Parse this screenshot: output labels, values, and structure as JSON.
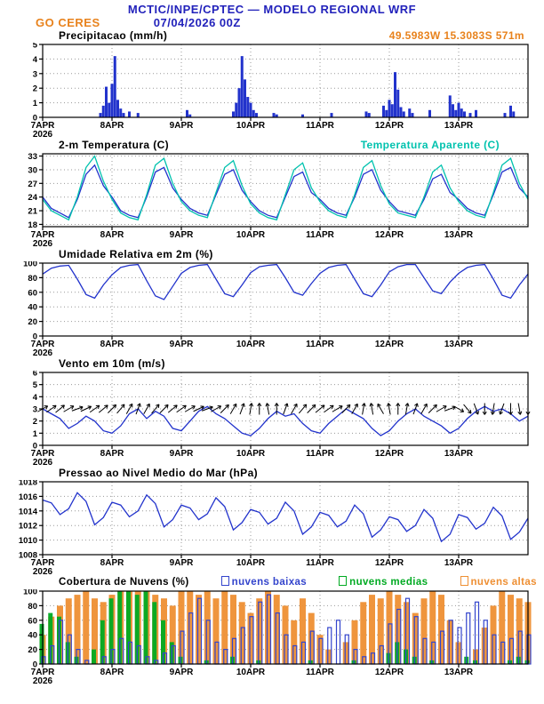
{
  "header": {
    "line1": "MCTIC/INPE/CPTEC — MODELO REGIONAL WRF",
    "station": "GO CERES",
    "datetime": "07/04/2026 00Z",
    "location": "49.5983W 15.3083S 571m"
  },
  "colors": {
    "header_blue": "#2222bb",
    "orange": "#e8821c",
    "line_blue": "#2233cc",
    "aqua": "#00c2ae",
    "grid_gray": "#999999",
    "black": "#000000"
  },
  "x_axis": {
    "hours_total": 168,
    "tick_hours": [
      0,
      24,
      48,
      72,
      96,
      120,
      144
    ],
    "tick_labels": [
      "7APR",
      "8APR",
      "9APR",
      "10APR",
      "11APR",
      "12APR",
      "13APR"
    ],
    "year_label": "2026"
  },
  "chart_data": [
    {
      "id": "precip",
      "type": "bar",
      "title": "Precipitacao (mm/h)",
      "ylim": [
        0,
        5
      ],
      "yticks": [
        0,
        1,
        2,
        3,
        4,
        5
      ],
      "bars": {
        "color": "#2233cc",
        "points": [
          [
            20,
            0.3
          ],
          [
            21,
            0.8
          ],
          [
            22,
            2.1
          ],
          [
            23,
            1.0
          ],
          [
            24,
            2.3
          ],
          [
            25,
            4.2
          ],
          [
            26,
            1.2
          ],
          [
            27,
            0.6
          ],
          [
            28,
            0.3
          ],
          [
            30,
            0.4
          ],
          [
            33,
            0.3
          ],
          [
            50,
            0.5
          ],
          [
            51,
            0.2
          ],
          [
            66,
            0.4
          ],
          [
            67,
            1.0
          ],
          [
            68,
            2.0
          ],
          [
            69,
            4.2
          ],
          [
            70,
            2.6
          ],
          [
            71,
            1.4
          ],
          [
            72,
            1.0
          ],
          [
            73,
            0.5
          ],
          [
            74,
            0.3
          ],
          [
            80,
            0.3
          ],
          [
            81,
            0.2
          ],
          [
            90,
            0.2
          ],
          [
            100,
            0.3
          ],
          [
            112,
            0.4
          ],
          [
            113,
            0.3
          ],
          [
            118,
            0.8
          ],
          [
            119,
            0.5
          ],
          [
            120,
            1.2
          ],
          [
            121,
            0.9
          ],
          [
            122,
            3.1
          ],
          [
            123,
            1.9
          ],
          [
            124,
            0.7
          ],
          [
            125,
            0.4
          ],
          [
            127,
            0.6
          ],
          [
            128,
            0.3
          ],
          [
            134,
            0.5
          ],
          [
            141,
            1.5
          ],
          [
            142,
            0.9
          ],
          [
            143,
            0.5
          ],
          [
            144,
            1.0
          ],
          [
            145,
            0.6
          ],
          [
            146,
            0.4
          ],
          [
            148,
            0.3
          ],
          [
            150,
            0.5
          ],
          [
            160,
            0.3
          ],
          [
            162,
            0.8
          ],
          [
            163,
            0.4
          ]
        ]
      }
    },
    {
      "id": "temp",
      "type": "line",
      "title": "2-m Temperatura (C)",
      "ylim": [
        17.5,
        33.5
      ],
      "yticks": [
        18,
        21,
        24,
        27,
        30,
        33
      ],
      "step_hours": 3,
      "series": [
        {
          "name": "2-m Temperatura (C)",
          "color": "#2233cc",
          "values": [
            24.0,
            21.5,
            20.5,
            19.5,
            23.5,
            29.0,
            31.0,
            26.5,
            24.0,
            21.0,
            20.0,
            19.5,
            24.0,
            29.5,
            30.5,
            26.0,
            23.5,
            21.5,
            20.5,
            20.0,
            24.5,
            29.0,
            30.0,
            25.5,
            23.0,
            21.0,
            20.0,
            19.5,
            24.0,
            28.5,
            29.5,
            25.0,
            23.5,
            21.5,
            20.5,
            20.0,
            24.0,
            29.0,
            30.0,
            25.5,
            23.0,
            21.0,
            20.5,
            20.0,
            23.5,
            28.0,
            29.0,
            25.0,
            23.5,
            21.5,
            20.5,
            20.0,
            24.5,
            29.5,
            30.5,
            26.0,
            24.0
          ]
        },
        {
          "name": "Temperatura Aparente (C)",
          "color": "#00c2ae",
          "values": [
            23.5,
            21.0,
            20.0,
            19.0,
            24.0,
            30.5,
            33.0,
            27.5,
            23.5,
            20.5,
            19.5,
            19.0,
            24.5,
            31.0,
            32.5,
            27.0,
            23.0,
            21.0,
            20.0,
            19.5,
            25.0,
            30.5,
            32.0,
            26.5,
            22.5,
            20.5,
            19.5,
            19.0,
            24.5,
            30.0,
            31.5,
            26.0,
            23.0,
            21.0,
            20.0,
            19.5,
            24.5,
            30.5,
            32.0,
            26.5,
            22.5,
            20.5,
            20.0,
            19.5,
            24.0,
            29.5,
            31.0,
            26.0,
            23.0,
            21.0,
            20.0,
            19.5,
            25.0,
            31.0,
            32.5,
            27.0,
            23.5
          ]
        }
      ]
    },
    {
      "id": "rh",
      "type": "line",
      "title": "Umidade Relativa em 2m (%)",
      "ylim": [
        0,
        100
      ],
      "yticks": [
        0,
        20,
        40,
        60,
        80,
        100
      ],
      "step_hours": 3,
      "series": [
        {
          "name": "Umidade Relativa em 2m (%)",
          "color": "#2233cc",
          "values": [
            85,
            93,
            96,
            97,
            78,
            57,
            52,
            70,
            84,
            94,
            97,
            98,
            76,
            55,
            50,
            68,
            86,
            94,
            97,
            98,
            78,
            58,
            54,
            70,
            87,
            95,
            97,
            98,
            80,
            60,
            56,
            72,
            86,
            94,
            97,
            98,
            78,
            58,
            54,
            70,
            88,
            95,
            98,
            98,
            80,
            62,
            58,
            74,
            86,
            94,
            97,
            98,
            78,
            56,
            52,
            70,
            85
          ]
        }
      ]
    },
    {
      "id": "wind",
      "type": "line",
      "title": "Vento em 10m (m/s)",
      "ylim": [
        0,
        6
      ],
      "yticks": [
        0,
        1,
        2,
        3,
        4,
        5,
        6
      ],
      "step_hours": 3,
      "series": [
        {
          "name": "Vento em 10m (m/s)",
          "color": "#2233cc",
          "values": [
            3.0,
            2.6,
            2.2,
            1.4,
            1.8,
            2.4,
            2.0,
            1.2,
            1.0,
            1.6,
            2.6,
            3.0,
            2.2,
            2.8,
            2.4,
            1.4,
            1.2,
            2.0,
            2.8,
            3.2,
            2.6,
            2.2,
            1.6,
            1.0,
            0.8,
            1.4,
            2.2,
            2.8,
            2.4,
            2.6,
            1.8,
            1.2,
            1.0,
            1.8,
            2.4,
            3.0,
            2.6,
            2.2,
            1.4,
            0.8,
            1.2,
            2.0,
            2.6,
            3.0,
            2.4,
            2.0,
            1.6,
            1.0,
            1.4,
            2.2,
            2.8,
            3.2,
            2.8,
            3.0,
            2.6,
            2.0,
            2.4
          ]
        }
      ],
      "arrows": {
        "at_value": 3,
        "color": "#000000",
        "step_hours": 3,
        "dirs_deg": [
          30,
          35,
          40,
          30,
          20,
          25,
          35,
          40,
          45,
          50,
          60,
          70,
          60,
          50,
          45,
          40,
          35,
          30,
          25,
          20,
          30,
          45,
          60,
          70,
          80,
          90,
          100,
          90,
          70,
          60,
          50,
          45,
          40,
          35,
          30,
          45,
          60,
          80,
          100,
          120,
          100,
          90,
          80,
          70,
          60,
          45,
          30,
          20,
          -30,
          -50,
          -70,
          -90,
          -100,
          -110,
          -90,
          -80,
          -90
        ]
      }
    },
    {
      "id": "pres",
      "type": "line",
      "title": "Pressao ao Nivel Medio do Mar (hPa)",
      "ylim": [
        1008,
        1018
      ],
      "yticks": [
        1008,
        1010,
        1012,
        1014,
        1016,
        1018
      ],
      "step_hours": 3,
      "series": [
        {
          "name": "Pressao ao Nivel Medio do Mar (hPa)",
          "color": "#2233cc",
          "values": [
            1015.5,
            1015.1,
            1013.5,
            1014.3,
            1016.5,
            1015.3,
            1012.1,
            1013.1,
            1015.2,
            1014.8,
            1013.2,
            1014.0,
            1016.2,
            1015.0,
            1011.8,
            1012.8,
            1014.8,
            1014.4,
            1012.8,
            1013.6,
            1015.8,
            1014.6,
            1011.4,
            1012.4,
            1014.2,
            1013.8,
            1012.2,
            1013.0,
            1015.2,
            1014.0,
            1010.8,
            1011.8,
            1013.8,
            1013.4,
            1011.8,
            1012.6,
            1014.8,
            1013.6,
            1010.4,
            1011.4,
            1013.2,
            1012.8,
            1011.2,
            1012.0,
            1014.2,
            1013.0,
            1009.8,
            1010.8,
            1013.5,
            1013.1,
            1011.5,
            1012.3,
            1014.5,
            1013.3,
            1010.1,
            1011.1,
            1013.0
          ]
        }
      ]
    },
    {
      "id": "clouds",
      "type": "bar",
      "title": "Cobertura de Nuvens (%)",
      "ylim": [
        0,
        100
      ],
      "yticks": [
        0,
        20,
        40,
        60,
        80,
        100
      ],
      "step_hours": 3,
      "series": [
        {
          "name": "nuvens baixas",
          "color": "#3344cc",
          "style": "outline",
          "width": 4,
          "offset": 1,
          "values": [
            10,
            25,
            60,
            40,
            20,
            5,
            0,
            10,
            20,
            35,
            30,
            25,
            10,
            5,
            15,
            25,
            45,
            70,
            90,
            60,
            30,
            20,
            35,
            50,
            65,
            85,
            95,
            70,
            40,
            25,
            30,
            45,
            35,
            50,
            60,
            40,
            20,
            10,
            15,
            25,
            55,
            75,
            90,
            65,
            35,
            30,
            45,
            60,
            50,
            70,
            85,
            60,
            40,
            30,
            35,
            45,
            40
          ]
        },
        {
          "name": "nuvens medias",
          "color": "#00aa22",
          "style": "fill",
          "width": 5,
          "offset": -1,
          "values": [
            55,
            70,
            65,
            30,
            10,
            0,
            20,
            60,
            90,
            100,
            100,
            95,
            100,
            85,
            60,
            30,
            10,
            0,
            0,
            5,
            0,
            0,
            10,
            0,
            0,
            5,
            0,
            0,
            0,
            0,
            0,
            5,
            0,
            0,
            0,
            0,
            5,
            0,
            0,
            0,
            15,
            30,
            20,
            10,
            0,
            5,
            0,
            0,
            0,
            10,
            5,
            0,
            0,
            0,
            5,
            10,
            5
          ]
        },
        {
          "name": "nuvens altas",
          "color": "#ee8f33",
          "style": "fill",
          "width": 7,
          "offset": 0,
          "values": [
            40,
            65,
            80,
            90,
            95,
            100,
            90,
            85,
            95,
            100,
            100,
            100,
            100,
            95,
            90,
            80,
            100,
            100,
            95,
            100,
            90,
            100,
            95,
            85,
            70,
            90,
            100,
            95,
            80,
            60,
            90,
            70,
            40,
            20,
            0,
            30,
            60,
            85,
            95,
            90,
            100,
            95,
            85,
            70,
            90,
            100,
            95,
            60,
            30,
            0,
            20,
            50,
            80,
            100,
            95,
            90,
            85
          ]
        }
      ]
    }
  ]
}
